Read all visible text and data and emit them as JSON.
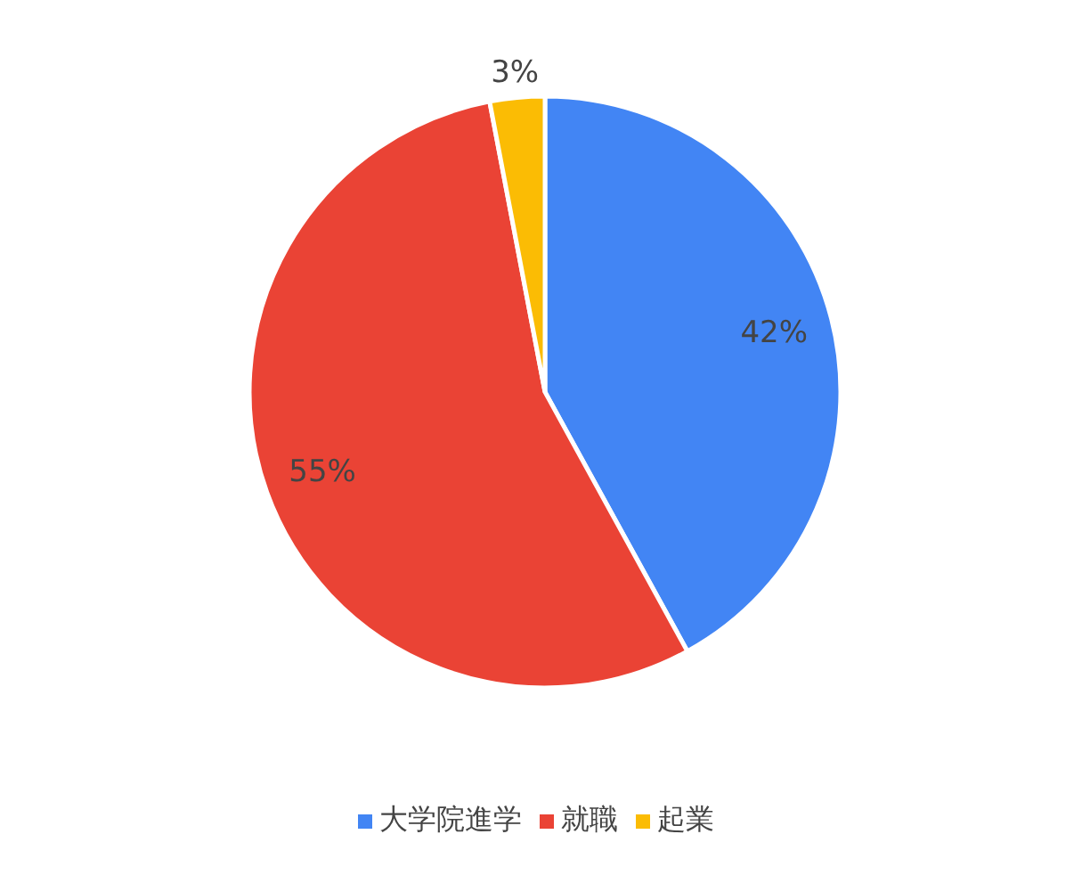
{
  "chart_data": {
    "type": "pie",
    "categories": [
      "大学院進学",
      "就職",
      "起業"
    ],
    "values": [
      42,
      55,
      3
    ],
    "colors": [
      "#4285f4",
      "#ea4335",
      "#fbbc04"
    ],
    "value_labels": [
      "42%",
      "55%",
      "3%"
    ],
    "legend": "bottom"
  }
}
